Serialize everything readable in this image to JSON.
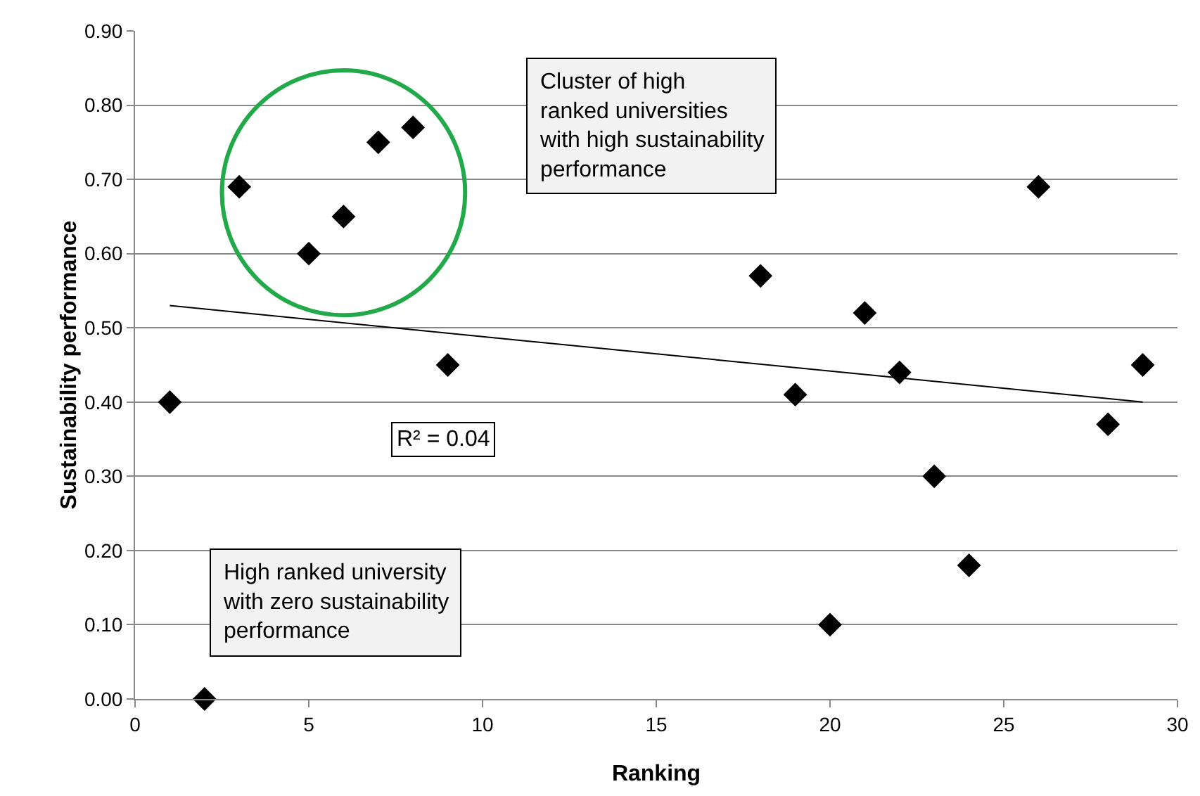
{
  "chart_data": {
    "type": "scatter",
    "xlabel": "Ranking",
    "ylabel": "Sustainability performance",
    "xlim": [
      0,
      30
    ],
    "xticks": [
      0,
      5,
      10,
      15,
      20,
      25,
      30
    ],
    "ylim": [
      0,
      0.9
    ],
    "yticks": [
      {
        "value": 0,
        "label": "0.00"
      },
      {
        "value": 0.1,
        "label": "0.10"
      },
      {
        "value": 0.2,
        "label": "0.20"
      },
      {
        "value": 0.3,
        "label": "0.30"
      },
      {
        "value": 0.4,
        "label": "0.40"
      },
      {
        "value": 0.5,
        "label": "0.50"
      },
      {
        "value": 0.6,
        "label": "0.60"
      },
      {
        "value": 0.7,
        "label": "0.70"
      },
      {
        "value": 0.8,
        "label": "0.80"
      },
      {
        "value": 0.9,
        "label": "0.90"
      }
    ],
    "grid": "y",
    "series": [
      {
        "color": "#000000",
        "marker": "diamond",
        "x": [
          1,
          2,
          3,
          5,
          6,
          7,
          8,
          9,
          18,
          19,
          20,
          21,
          22,
          23,
          24,
          26,
          28,
          29
        ],
        "values": [
          0.4,
          0.0,
          0.69,
          0.6,
          0.65,
          0.75,
          0.77,
          0.45,
          0.57,
          0.41,
          0.1,
          0.52,
          0.44,
          0.3,
          0.18,
          0.69,
          0.37,
          0.45
        ]
      },
      {
        "type": "line",
        "color": "#000000",
        "marker": "none",
        "x": [
          1,
          29
        ],
        "values": [
          0.53,
          0.4
        ]
      }
    ],
    "annotations": [
      "Cluster of high\nranked universities\nwith high sustainability\nperformance",
      "R² = 0.04",
      "High ranked university\nwith zero sustainability\nperformance"
    ]
  }
}
